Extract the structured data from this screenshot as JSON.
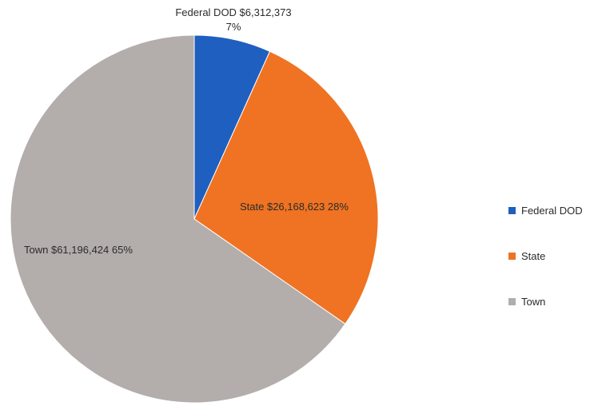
{
  "chart_data": {
    "type": "pie",
    "categories": [
      "Federal DOD",
      "State",
      "Town"
    ],
    "values": [
      6312373,
      26168623,
      61196424
    ],
    "value_labels": [
      "$6,312,373",
      "$26,168,623",
      "$61,196,424"
    ],
    "percent_labels": [
      "7%",
      "28%",
      "65%"
    ],
    "colors": [
      "#1f5fbf",
      "#ef7322",
      "#b3adac"
    ],
    "title": "",
    "legend_position": "right",
    "start_angle": "12 o'clock",
    "direction": "clockwise"
  },
  "legend": {
    "items": [
      {
        "label": "Federal DOD",
        "color": "#1f5fbf"
      },
      {
        "label": "State",
        "color": "#ef7322"
      },
      {
        "label": "Town",
        "color": "#b3adac"
      }
    ]
  }
}
